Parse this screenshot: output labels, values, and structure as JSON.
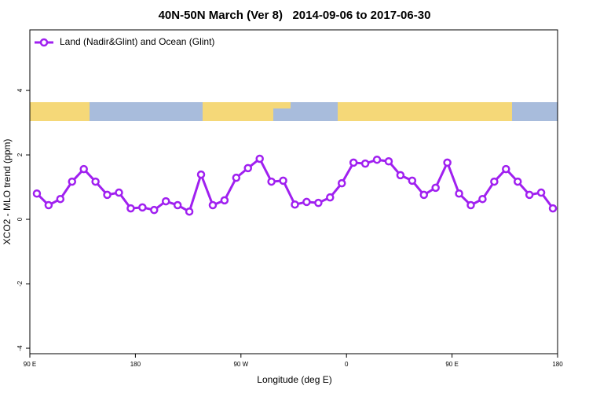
{
  "chart_data": {
    "type": "line",
    "title": "40N-50N March (Ver 8)   2014-09-06 to 2017-06-30",
    "xlabel": "Longitude (deg E)",
    "ylabel": "XCO2 - MLO trend (ppm)",
    "x": [
      96,
      106,
      116,
      126,
      136,
      146,
      156,
      166,
      176,
      186,
      196,
      206,
      216,
      226,
      236,
      246,
      256,
      266,
      276,
      286,
      296,
      306,
      316,
      326,
      336,
      346,
      356,
      366,
      376,
      386,
      396,
      406,
      416,
      426,
      436,
      446,
      456,
      466,
      476,
      486,
      496,
      506,
      516,
      526,
      536
    ],
    "series": [
      {
        "name": "Land (Nadir&Glint) and Ocean (Glint)",
        "color": "#a020f0",
        "values": [
          0.8,
          0.44,
          0.63,
          1.17,
          1.56,
          1.17,
          0.76,
          0.83,
          0.34,
          0.37,
          0.29,
          0.56,
          0.44,
          0.24,
          1.39,
          0.44,
          0.59,
          1.29,
          1.59,
          1.88,
          1.17,
          1.2,
          0.46,
          0.54,
          0.51,
          0.68,
          1.12,
          1.76,
          1.73,
          1.85,
          1.8,
          1.37,
          1.2,
          0.76,
          0.98,
          1.76,
          0.8,
          0.44,
          0.63,
          1.17,
          1.56,
          1.17,
          0.76,
          0.83,
          0.34
        ]
      }
    ],
    "xlim": [
      90,
      540
    ],
    "xticks": [
      {
        "value": 90,
        "label": "90 E"
      },
      180,
      {
        "value": 270,
        "label": "90 W"
      },
      {
        "value": 360,
        "label": "0"
      },
      {
        "value": 450,
        "label": "90 E"
      },
      {
        "value": 540,
        "label": "180"
      }
    ],
    "ylim": [
      -4.17,
      5.88
    ],
    "yticks": [
      -4,
      -2,
      0,
      2,
      4
    ],
    "legend": "top-left"
  }
}
